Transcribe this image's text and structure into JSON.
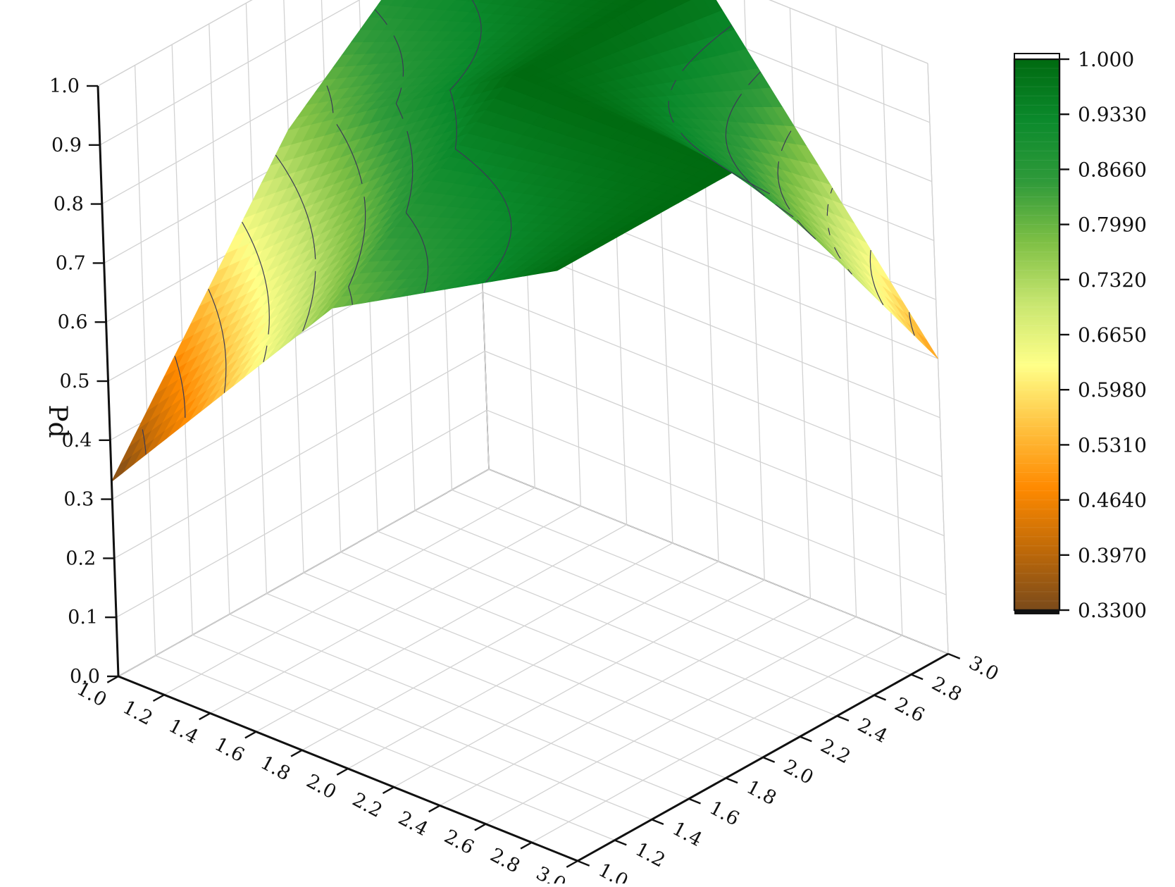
{
  "chart_data": {
    "type": "surface3d",
    "title": "",
    "zlabel": "Pd",
    "xlabel": "",
    "ylabel": "",
    "x_ticks": [
      "1.0",
      "1.2",
      "1.4",
      "1.6",
      "1.8",
      "2.0",
      "2.2",
      "2.4",
      "2.6",
      "2.8",
      "3.0"
    ],
    "y_ticks": [
      "1.0",
      "1.2",
      "1.4",
      "1.6",
      "1.8",
      "2.0",
      "2.2",
      "2.4",
      "2.6",
      "2.8",
      "3.0"
    ],
    "z_ticks": [
      "0.0",
      "0.1",
      "0.2",
      "0.3",
      "0.4",
      "0.5",
      "0.6",
      "0.7",
      "0.8",
      "0.9",
      "1.0"
    ],
    "x_range": [
      1.0,
      3.0
    ],
    "y_range": [
      1.0,
      3.0
    ],
    "z_range": [
      0.0,
      1.0
    ],
    "grid": true,
    "surface": {
      "x": [
        1.0,
        2.0,
        3.0
      ],
      "y": [
        1.0,
        2.0,
        3.0
      ],
      "z": [
        [
          0.33,
          0.75,
          1.0
        ],
        [
          0.78,
          1.0,
          1.0
        ],
        [
          1.0,
          1.0,
          0.5
        ]
      ]
    },
    "contour_levels": [
      0.4,
      0.48,
      0.56,
      0.64,
      0.72,
      0.8,
      0.87,
      0.93
    ],
    "colorbar": {
      "position": "right",
      "ticks": [
        "0.3300",
        "0.3970",
        "0.4640",
        "0.5310",
        "0.5980",
        "0.6650",
        "0.7320",
        "0.7990",
        "0.8660",
        "0.9330",
        "1.000"
      ],
      "range": [
        0.33,
        1.0
      ],
      "colors": [
        "#7a4a1a",
        "#c06a08",
        "#ff8a00",
        "#ffc240",
        "#ffff88",
        "#c8e670",
        "#7fc045",
        "#2f9a3a",
        "#0b8a2c",
        "#006a10"
      ]
    }
  }
}
